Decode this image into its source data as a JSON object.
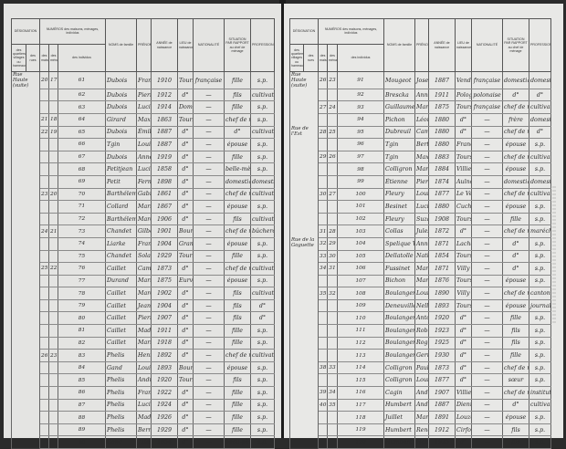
{
  "headers": {
    "designation": "DÉSIGNATION",
    "designation_sub": [
      "des quartiers, villages ou hameaux",
      "des rues"
    ],
    "numeros": "NUMÉROS des maisons, ménages, individus",
    "numeros_sub": [
      "des maisons",
      "des ménages",
      "des individus"
    ],
    "noms": "NOMS de famille",
    "prenoms": "PRÉNOMS",
    "annee": "ANNÉE de naissance",
    "lieu": "LIEU de naissance",
    "nationalite": "NATIONALITÉ",
    "situation": "SITUATION PAR RAPPORT au chef de ménage",
    "profession": "PROFESSION",
    "note": "Pour les patrons, chefs d'entreprise, ouvriers à façon, indiquer le nom de l'employeur"
  },
  "pages": [
    {
      "rows": [
        [
          "Rue Haute (suite)",
          "20",
          "17",
          "61",
          "Dubois",
          "Francine",
          "1910",
          "Tours",
          "française",
          "fille",
          "s.p.",
          ""
        ],
        [
          "",
          "",
          "",
          "62",
          "Dubois",
          "Pierre",
          "1912",
          "d°",
          "—",
          "fils",
          "cultivateur",
          ""
        ],
        [
          "",
          "",
          "",
          "63",
          "Dubois",
          "Lucile Marie",
          "1914",
          "Dombasle",
          "—",
          "fille",
          "s.p.",
          ""
        ],
        [
          "",
          "21",
          "18",
          "64",
          "Girard",
          "Maximilien",
          "1863",
          "Tours",
          "—",
          "chef de ménage",
          "s.p.",
          ""
        ],
        [
          "",
          "22",
          "19",
          "65",
          "Dubois",
          "Émile Léon",
          "1887",
          "d°",
          "—",
          "d°",
          "cultivateur",
          "Patron"
        ],
        [
          "",
          "",
          "",
          "66",
          "Tgin",
          "Louise",
          "1887",
          "d°",
          "—",
          "épouse",
          "s.p.",
          ""
        ],
        [
          "",
          "",
          "",
          "67",
          "Dubois",
          "Anne Marie",
          "1919",
          "d°",
          "—",
          "fille",
          "s.p.",
          ""
        ],
        [
          "",
          "",
          "",
          "68",
          "Petitjean",
          "Lucie Marie",
          "1858",
          "d°",
          "—",
          "belle-mère",
          "s.p.",
          ""
        ],
        [
          "",
          "",
          "",
          "69",
          "Petit",
          "Fernand",
          "1898",
          "d°",
          "—",
          "domestique",
          "domestique",
          ""
        ],
        [
          "",
          "23",
          "20",
          "70",
          "Barthélemy",
          "Gabriel Victor",
          "1861",
          "d°",
          "—",
          "chef de ménage",
          "cultivateur",
          "Patron"
        ],
        [
          "",
          "",
          "",
          "71",
          "Collard",
          "Marie Louise",
          "1867",
          "d°",
          "—",
          "épouse",
          "s.p.",
          ""
        ],
        [
          "",
          "",
          "",
          "72",
          "Barthélemy",
          "Marcel Alphonse",
          "1906",
          "d°",
          "—",
          "fils",
          "cultivateur",
          ""
        ],
        [
          "",
          "24",
          "21",
          "73",
          "Chandet",
          "Gilbert",
          "1901",
          "Bourbonne",
          "—",
          "chef de ménage",
          "bûcheron",
          "Dumas & Cie"
        ],
        [
          "",
          "",
          "",
          "74",
          "Liarke",
          "Françoise",
          "1904",
          "Grancey",
          "—",
          "épouse",
          "s.p.",
          ""
        ],
        [
          "",
          "",
          "",
          "75",
          "Chandet",
          "Solange",
          "1929",
          "Tours",
          "—",
          "fille",
          "s.p.",
          ""
        ],
        [
          "",
          "25",
          "22",
          "76",
          "Caillet",
          "Camille",
          "1873",
          "d°",
          "—",
          "chef de ménage",
          "cultivateur",
          "Patron"
        ],
        [
          "",
          "",
          "",
          "77",
          "Durand",
          "Marie Henriette",
          "1875",
          "Eurville",
          "—",
          "épouse",
          "s.p.",
          ""
        ],
        [
          "",
          "",
          "",
          "78",
          "Caillet",
          "Marcel",
          "1902",
          "d°",
          "—",
          "fils",
          "cultivateur",
          ""
        ],
        [
          "",
          "",
          "",
          "79",
          "Caillet",
          "Jean",
          "1904",
          "d°",
          "—",
          "fils",
          "d°",
          ""
        ],
        [
          "",
          "",
          "",
          "80",
          "Caillet",
          "Pierre",
          "1907",
          "d°",
          "—",
          "fils",
          "d°",
          ""
        ],
        [
          "",
          "",
          "",
          "81",
          "Caillet",
          "Madeleine",
          "1911",
          "d°",
          "—",
          "fille",
          "s.p.",
          ""
        ],
        [
          "",
          "",
          "",
          "82",
          "Caillet",
          "Marie Louise",
          "1918",
          "d°",
          "—",
          "fille",
          "s.p.",
          ""
        ],
        [
          "",
          "26",
          "23",
          "83",
          "Phelis",
          "Henri Jacques",
          "1892",
          "d°",
          "—",
          "chef de ménage",
          "cultivateur",
          "Patron"
        ],
        [
          "",
          "",
          "",
          "84",
          "Gand",
          "Louise Marie",
          "1893",
          "Bourogne",
          "—",
          "épouse",
          "s.p.",
          ""
        ],
        [
          "",
          "",
          "",
          "85",
          "Phelis",
          "André Léon",
          "1920",
          "Tours",
          "—",
          "fils",
          "s.p.",
          ""
        ],
        [
          "",
          "",
          "",
          "86",
          "Phelis",
          "Francine Anne",
          "1922",
          "d°",
          "—",
          "fille",
          "s.p.",
          ""
        ],
        [
          "",
          "",
          "",
          "87",
          "Phelis",
          "Lucie Mathilde",
          "1924",
          "d°",
          "—",
          "fille",
          "s.p.",
          ""
        ],
        [
          "",
          "",
          "",
          "88",
          "Phelis",
          "Madeleine",
          "1926",
          "d°",
          "—",
          "fille",
          "s.p.",
          ""
        ],
        [
          "",
          "",
          "",
          "89",
          "Phelis",
          "Bernadette",
          "1929",
          "d°",
          "—",
          "fille",
          "s.p.",
          ""
        ],
        [
          "",
          "",
          "",
          "90",
          "Gand",
          "Jules",
          "1854",
          "d°",
          "—",
          "beau-père",
          "s.p.",
          ""
        ]
      ]
    },
    {
      "rows": [
        [
          "Rue Haute (suite)",
          "26",
          "23",
          "91",
          "Mougeot",
          "Joseph",
          "1887",
          "Vendeuvre",
          "française",
          "domestique",
          "domestique",
          ""
        ],
        [
          "",
          "",
          "",
          "92",
          "Brescka",
          "Anna",
          "1911",
          "Pologne",
          "polonaise",
          "d°",
          "d°",
          ""
        ],
        [
          "",
          "27",
          "24",
          "93",
          "Guillaume",
          "Marie Louise",
          "1875",
          "Tours",
          "française",
          "chef de ménage",
          "cultivatrice",
          "patronne"
        ],
        [
          "",
          "",
          "",
          "94",
          "Pichon",
          "Léon Henri",
          "1880",
          "d°",
          "—",
          "frère",
          "domestique",
          "Barthélemy Patron"
        ],
        [
          "Rue de l'Est",
          "28",
          "25",
          "95",
          "Dubreuil",
          "Camille",
          "1880",
          "d°",
          "—",
          "chef de ménage",
          "d°",
          "P.T.T."
        ],
        [
          "",
          "",
          "",
          "96",
          "Tgin",
          "Berthe",
          "1880",
          "Francourt",
          "—",
          "épouse",
          "s.p.",
          ""
        ],
        [
          "",
          "29",
          "26",
          "97",
          "Tgin",
          "Maxime",
          "1883",
          "Tours",
          "—",
          "chef de ménage",
          "cultivateur",
          "Patron"
        ],
        [
          "",
          "",
          "",
          "98",
          "Colligron",
          "Marie Claire",
          "1884",
          "Villiers-le-Sec",
          "—",
          "épouse",
          "s.p.",
          ""
        ],
        [
          "",
          "",
          "",
          "99",
          "Étienne",
          "Pierre",
          "1874",
          "Aulnoy",
          "—",
          "domestique",
          "domestique",
          ""
        ],
        [
          "",
          "30",
          "27",
          "100",
          "Fleury",
          "Louis",
          "1877",
          "Le Vernois",
          "—",
          "chef de ménage",
          "cultivateur",
          "Patron"
        ],
        [
          "",
          "",
          "",
          "101",
          "Besinet",
          "Lucie",
          "1880",
          "Cuches",
          "—",
          "épouse",
          "s.p.",
          ""
        ],
        [
          "",
          "",
          "",
          "102",
          "Fleury",
          "Suzanne",
          "1908",
          "Tours",
          "—",
          "fille",
          "s.p.",
          ""
        ],
        [
          "",
          "31",
          "28",
          "103",
          "Collas",
          "Jules",
          "1872",
          "d°",
          "—",
          "chef de ménage",
          "maréchal",
          ""
        ],
        [
          "Rue de la Goguette",
          "32",
          "29",
          "104",
          "Spelique Vve",
          "Anne Antoinette",
          "1871",
          "Lachaume",
          "—",
          "d°",
          "s.p.",
          ""
        ],
        [
          "",
          "33",
          "30",
          "105",
          "Dellatolle Vve",
          "Nathalie",
          "1854",
          "Tours",
          "—",
          "d°",
          "s.p.",
          ""
        ],
        [
          "",
          "34",
          "31",
          "106",
          "Fussinet",
          "Marie Émile",
          "1871",
          "Villy",
          "—",
          "d°",
          "s.p.",
          ""
        ],
        [
          "",
          "",
          "",
          "107",
          "Bichon",
          "Marie Juliette",
          "1876",
          "Tours",
          "—",
          "épouse",
          "s.p.",
          ""
        ],
        [
          "",
          "35",
          "32",
          "108",
          "Boulanger",
          "Louis",
          "1890",
          "Villy",
          "—",
          "chef de ménage",
          "cantonnier",
          ""
        ],
        [
          "",
          "",
          "",
          "109",
          "Deneuville",
          "Nelly",
          "1893",
          "Tours",
          "—",
          "épouse",
          "journalière",
          ""
        ],
        [
          "",
          "",
          "",
          "110",
          "Boulanger",
          "Antoinette",
          "1920",
          "d°",
          "—",
          "fille",
          "s.p.",
          ""
        ],
        [
          "",
          "",
          "",
          "111",
          "Boulanger",
          "Robert",
          "1923",
          "d°",
          "—",
          "fils",
          "s.p.",
          ""
        ],
        [
          "",
          "",
          "",
          "112",
          "Boulanger",
          "Roger",
          "1925",
          "d°",
          "—",
          "fils",
          "s.p.",
          ""
        ],
        [
          "",
          "",
          "",
          "113",
          "Boulanger",
          "Germaine",
          "1930",
          "d°",
          "—",
          "fille",
          "s.p.",
          ""
        ],
        [
          "",
          "38",
          "33",
          "114",
          "Colligron",
          "Pauline",
          "1873",
          "d°",
          "—",
          "chef de ménage",
          "s.p.",
          ""
        ],
        [
          "",
          "",
          "",
          "115",
          "Colligron",
          "Louise",
          "1877",
          "d°",
          "—",
          "sœur",
          "s.p.",
          ""
        ],
        [
          "",
          "39",
          "34",
          "116",
          "Cagin",
          "André",
          "1907",
          "Villiers",
          "—",
          "chef de ménage",
          "instituteur",
          ""
        ],
        [
          "",
          "40",
          "35",
          "117",
          "Humbert",
          "André Jules",
          "1887",
          "Dienne",
          "—",
          "d°",
          "cultivateur",
          "Patron"
        ],
        [
          "",
          "",
          "",
          "118",
          "Juillet",
          "Marguerite",
          "1891",
          "Louze",
          "—",
          "épouse",
          "s.p.",
          ""
        ],
        [
          "",
          "",
          "",
          "119",
          "Humbert",
          "René Robert",
          "1912",
          "Cirfontaines",
          "—",
          "fils",
          "s.p.",
          ""
        ],
        [
          "",
          "",
          "",
          "120",
          "Humbert",
          "Honoré Louis",
          "1925",
          "d°",
          "—",
          "fils",
          "s.p.",
          ""
        ]
      ]
    }
  ]
}
